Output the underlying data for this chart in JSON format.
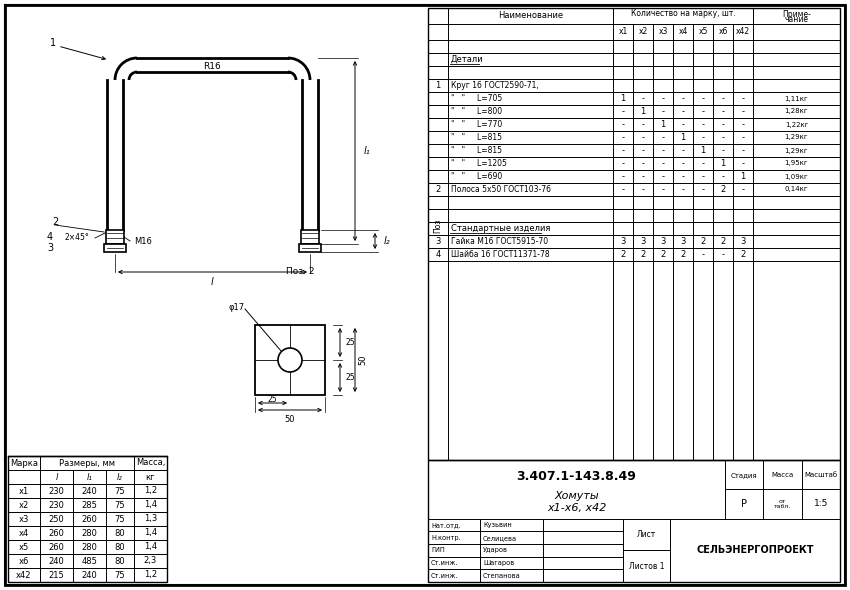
{
  "bg_color": "#ffffff",
  "title": "3.407.1-143.8.49",
  "org": "СЕЛЬЭНЕРГОПРОЕКТ",
  "stage": "Р",
  "scale": "1:5",
  "left_table": {
    "rows": [
      [
        "х1",
        "230",
        "240",
        "75",
        "1,2"
      ],
      [
        "х2",
        "230",
        "285",
        "75",
        "1,4"
      ],
      [
        "х3",
        "250",
        "260",
        "75",
        "1,3"
      ],
      [
        "х4",
        "260",
        "280",
        "80",
        "1,4"
      ],
      [
        "х5",
        "260",
        "280",
        "80",
        "1,4"
      ],
      [
        "х6",
        "240",
        "485",
        "80",
        "2,3"
      ],
      [
        "х42",
        "215",
        "240",
        "75",
        "1,2"
      ]
    ]
  },
  "sig_roles": [
    "Нат.отд.",
    "Н.контр.",
    "ГИП",
    "Ст.инж.",
    "Ст.инж."
  ],
  "sig_names": [
    "Кузьвин",
    "Селицева",
    "Ударов",
    "Шагаров",
    "Степанова"
  ]
}
